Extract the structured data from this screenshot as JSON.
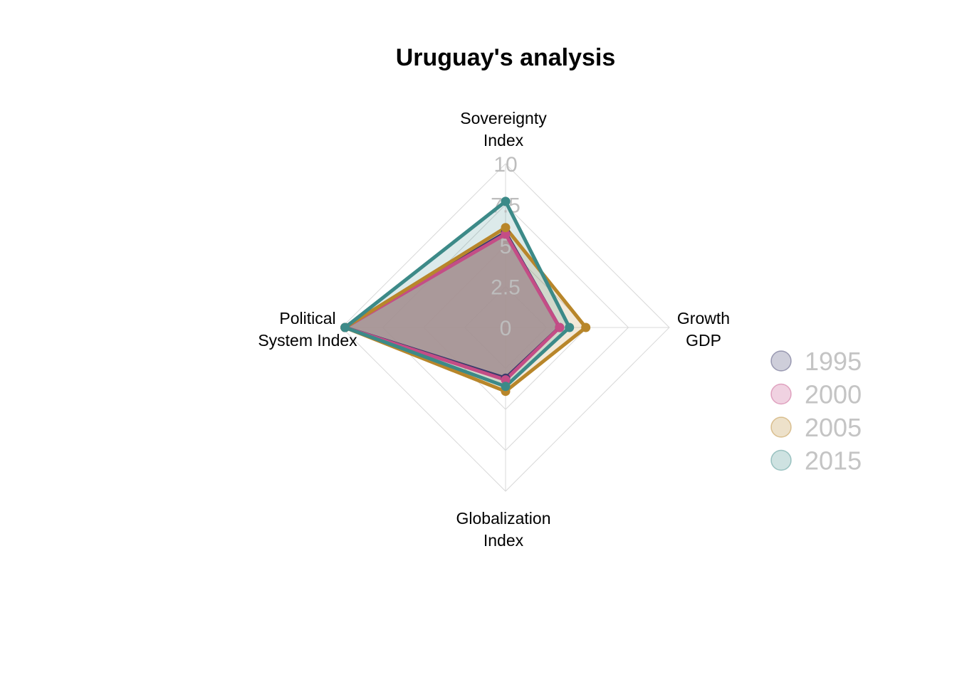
{
  "chart_data": {
    "type": "radar",
    "title": "Uruguay's analysis",
    "axes": [
      [
        "Sovereignty",
        "Index"
      ],
      [
        "Growth",
        "GDP"
      ],
      [
        "Globalization",
        "Index"
      ],
      [
        "Political",
        "System Index"
      ]
    ],
    "tick_labels": [
      "0",
      "2.5",
      "5",
      "7.5",
      "10"
    ],
    "range": [
      0,
      10
    ],
    "grid": true,
    "legend_position": "right",
    "series": [
      {
        "name": "1995",
        "values": [
          5.8,
          3.3,
          3.1,
          9.8
        ],
        "color": "#3b3b6b"
      },
      {
        "name": "2000",
        "values": [
          5.7,
          3.3,
          3.2,
          9.8
        ],
        "color": "#c44d86"
      },
      {
        "name": "2005",
        "values": [
          6.1,
          4.9,
          3.9,
          9.8
        ],
        "color": "#b8862a"
      },
      {
        "name": "2015",
        "values": [
          7.7,
          3.9,
          3.6,
          9.8
        ],
        "color": "#3c8a88"
      }
    ],
    "overlap_color": "#a89596"
  }
}
